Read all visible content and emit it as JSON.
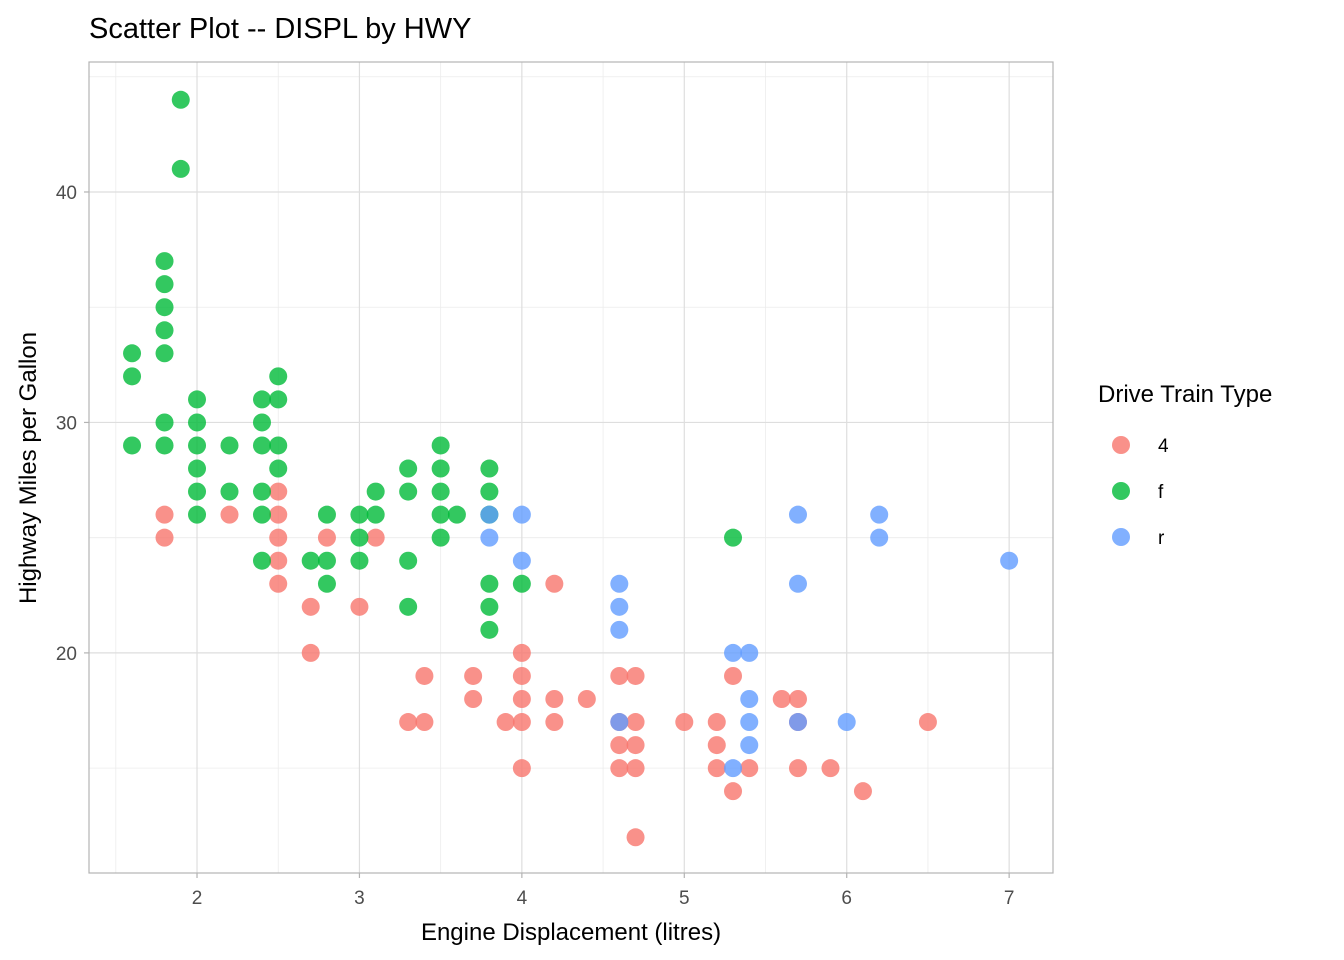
{
  "chart_data": {
    "type": "scatter",
    "title": "Scatter Plot -- DISPL by HWY",
    "xlabel": "Engine Displacement (litres)",
    "ylabel": "Highway Miles per Gallon",
    "xlim": [
      1.335,
      7.27
    ],
    "ylim": [
      10.45,
      45.64
    ],
    "xticks": [
      2,
      3,
      4,
      5,
      6,
      7
    ],
    "yticks": [
      20,
      30,
      40
    ],
    "grid": true,
    "legend": {
      "title": "Drive Train Type",
      "placement": "right"
    },
    "series": [
      {
        "name": "4",
        "color": "#F8766D",
        "points": [
          [
            1.8,
            26
          ],
          [
            1.8,
            25
          ],
          [
            2.2,
            26
          ],
          [
            2.5,
            27
          ],
          [
            2.5,
            26
          ],
          [
            2.5,
            25
          ],
          [
            2.5,
            24
          ],
          [
            2.5,
            23
          ],
          [
            2.7,
            22
          ],
          [
            2.7,
            20
          ],
          [
            2.8,
            25
          ],
          [
            3.0,
            22
          ],
          [
            3.1,
            25
          ],
          [
            3.3,
            17
          ],
          [
            3.4,
            19
          ],
          [
            3.4,
            17
          ],
          [
            3.7,
            19
          ],
          [
            3.7,
            18
          ],
          [
            3.9,
            17
          ],
          [
            4.0,
            20
          ],
          [
            4.0,
            19
          ],
          [
            4.0,
            18
          ],
          [
            4.0,
            17
          ],
          [
            4.0,
            15
          ],
          [
            4.2,
            23
          ],
          [
            4.2,
            18
          ],
          [
            4.2,
            17
          ],
          [
            4.4,
            18
          ],
          [
            4.6,
            19
          ],
          [
            4.6,
            17
          ],
          [
            4.6,
            16
          ],
          [
            4.6,
            15
          ],
          [
            4.7,
            19
          ],
          [
            4.7,
            17
          ],
          [
            4.7,
            16
          ],
          [
            4.7,
            15
          ],
          [
            4.7,
            12
          ],
          [
            5.0,
            17
          ],
          [
            5.2,
            17
          ],
          [
            5.2,
            16
          ],
          [
            5.2,
            15
          ],
          [
            5.3,
            19
          ],
          [
            5.3,
            14
          ],
          [
            5.4,
            15
          ],
          [
            5.6,
            18
          ],
          [
            5.7,
            18
          ],
          [
            5.7,
            17
          ],
          [
            5.7,
            15
          ],
          [
            5.9,
            15
          ],
          [
            6.1,
            14
          ],
          [
            6.5,
            17
          ]
        ]
      },
      {
        "name": "f",
        "color": "#00BA38",
        "points": [
          [
            1.6,
            33
          ],
          [
            1.6,
            32
          ],
          [
            1.6,
            29
          ],
          [
            1.8,
            37
          ],
          [
            1.8,
            36
          ],
          [
            1.8,
            35
          ],
          [
            1.8,
            34
          ],
          [
            1.8,
            33
          ],
          [
            1.8,
            30
          ],
          [
            1.8,
            29
          ],
          [
            1.9,
            44
          ],
          [
            1.9,
            41
          ],
          [
            2.0,
            31
          ],
          [
            2.0,
            30
          ],
          [
            2.0,
            29
          ],
          [
            2.0,
            28
          ],
          [
            2.0,
            27
          ],
          [
            2.0,
            26
          ],
          [
            2.2,
            29
          ],
          [
            2.2,
            27
          ],
          [
            2.4,
            31
          ],
          [
            2.4,
            30
          ],
          [
            2.4,
            29
          ],
          [
            2.4,
            27
          ],
          [
            2.4,
            26
          ],
          [
            2.4,
            24
          ],
          [
            2.5,
            32
          ],
          [
            2.5,
            31
          ],
          [
            2.5,
            29
          ],
          [
            2.5,
            28
          ],
          [
            2.7,
            24
          ],
          [
            2.8,
            26
          ],
          [
            2.8,
            24
          ],
          [
            2.8,
            23
          ],
          [
            3.0,
            26
          ],
          [
            3.0,
            25
          ],
          [
            3.0,
            24
          ],
          [
            3.1,
            27
          ],
          [
            3.1,
            26
          ],
          [
            3.3,
            28
          ],
          [
            3.3,
            27
          ],
          [
            3.3,
            24
          ],
          [
            3.3,
            22
          ],
          [
            3.5,
            29
          ],
          [
            3.5,
            28
          ],
          [
            3.5,
            27
          ],
          [
            3.5,
            26
          ],
          [
            3.5,
            25
          ],
          [
            3.6,
            26
          ],
          [
            3.8,
            28
          ],
          [
            3.8,
            27
          ],
          [
            3.8,
            26
          ],
          [
            3.8,
            23
          ],
          [
            3.8,
            22
          ],
          [
            3.8,
            21
          ],
          [
            4.0,
            23
          ],
          [
            5.3,
            25
          ]
        ]
      },
      {
        "name": "r",
        "color": "#619CFF",
        "points": [
          [
            3.8,
            26
          ],
          [
            3.8,
            25
          ],
          [
            4.0,
            26
          ],
          [
            4.0,
            24
          ],
          [
            4.6,
            23
          ],
          [
            4.6,
            22
          ],
          [
            4.6,
            21
          ],
          [
            4.6,
            17
          ],
          [
            5.3,
            20
          ],
          [
            5.3,
            15
          ],
          [
            5.4,
            20
          ],
          [
            5.4,
            18
          ],
          [
            5.4,
            17
          ],
          [
            5.4,
            16
          ],
          [
            5.7,
            26
          ],
          [
            5.7,
            23
          ],
          [
            5.7,
            17
          ],
          [
            6.0,
            17
          ],
          [
            6.2,
            26
          ],
          [
            6.2,
            25
          ],
          [
            7.0,
            24
          ]
        ]
      }
    ]
  }
}
